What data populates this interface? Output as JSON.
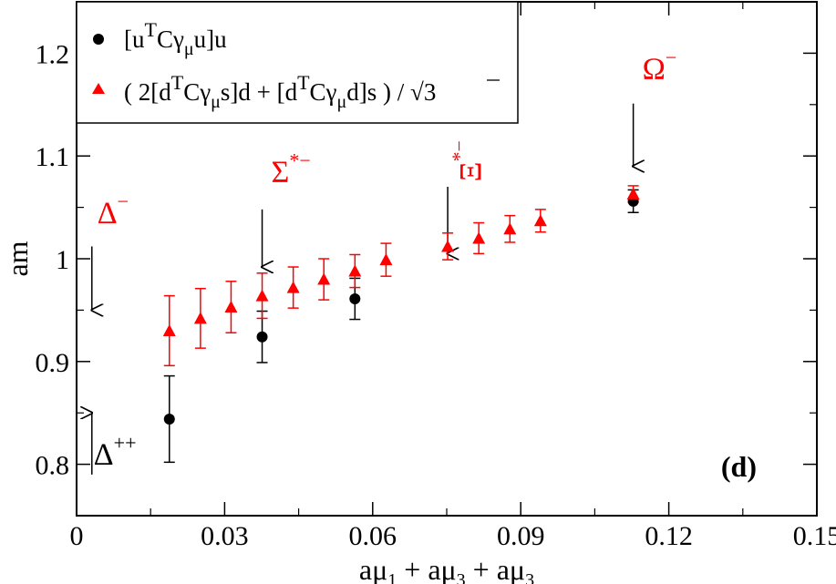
{
  "chart_data": {
    "type": "scatter",
    "panel_label": "(d)",
    "xlabel": {
      "a1": "aμ",
      "s1": "1",
      "a2": " + aμ",
      "s2": "3",
      "a3": " + aμ",
      "s3": "3"
    },
    "ylabel": "am",
    "xlim": [
      0,
      0.15
    ],
    "ylim": [
      0.75,
      1.25
    ],
    "x_ticks": [
      0,
      0.03,
      0.06,
      0.09,
      0.12,
      0.15
    ],
    "x_tick_labels": [
      "0",
      "0.03",
      "0.06",
      "0.09",
      "0.12",
      "0.15"
    ],
    "y_ticks": [
      0.8,
      0.9,
      1.0,
      1.1,
      1.2
    ],
    "y_tick_labels": [
      "0.8",
      "0.9",
      "1",
      "1.1",
      "1.2"
    ],
    "series": [
      {
        "name": "[u^T C γ_μ u] u",
        "color": "#000000",
        "marker": "circle",
        "points": [
          {
            "x": 0.0188,
            "y": 0.844,
            "err": 0.042
          },
          {
            "x": 0.0376,
            "y": 0.924,
            "err": 0.025
          },
          {
            "x": 0.0564,
            "y": 0.961,
            "err": 0.02
          },
          {
            "x": 0.1128,
            "y": 1.056,
            "err": 0.011
          }
        ]
      },
      {
        "name": "( 2[d^T C γ_μ s] d + [d^T C γ_μ d] s ) / √3",
        "color": "#ff0000",
        "marker": "triangle",
        "points": [
          {
            "x": 0.0188,
            "y": 0.93,
            "err": 0.034
          },
          {
            "x": 0.0251,
            "y": 0.942,
            "err": 0.029
          },
          {
            "x": 0.0313,
            "y": 0.953,
            "err": 0.025
          },
          {
            "x": 0.0376,
            "y": 0.964,
            "err": 0.022
          },
          {
            "x": 0.0439,
            "y": 0.972,
            "err": 0.02
          },
          {
            "x": 0.0501,
            "y": 0.98,
            "err": 0.02
          },
          {
            "x": 0.0564,
            "y": 0.988,
            "err": 0.016
          },
          {
            "x": 0.0627,
            "y": 0.999,
            "err": 0.016
          },
          {
            "x": 0.0752,
            "y": 1.012,
            "err": 0.013
          },
          {
            "x": 0.0815,
            "y": 1.02,
            "err": 0.015
          },
          {
            "x": 0.0878,
            "y": 1.029,
            "err": 0.013
          },
          {
            "x": 0.094,
            "y": 1.037,
            "err": 0.011
          },
          {
            "x": 0.1128,
            "y": 1.063,
            "err": 0.008
          }
        ]
      }
    ],
    "legend": {
      "position": "top-left",
      "entry1": {
        "p1": "[u",
        "sup": "T",
        "p2": "Cγ",
        "sub": "μ",
        "p3": "u]u"
      },
      "entry2": {
        "p1": "( 2[d",
        "sup1": "T",
        "p2": "Cγ",
        "sub1": "μ",
        "p3": "s]d + [d",
        "sup2": "T",
        "p4": "Cγ",
        "sub2": "μ",
        "p5": "d]s ) / ",
        "root": "√",
        "rootval": "3"
      }
    },
    "annotations": [
      {
        "id": "omega",
        "base": "Ω",
        "sup": "−",
        "color": "#ff0000",
        "arrow_x": 0.1128,
        "arrow_from": 1.151,
        "arrow_to": 1.09,
        "direction": "down"
      },
      {
        "id": "xi",
        "base": "Ξ",
        "sup": "*−",
        "color": "#ff0000",
        "arrow_x": 0.0752,
        "arrow_from": 1.07,
        "arrow_to": 1.005,
        "direction": "down"
      },
      {
        "id": "sigma",
        "base": "Σ",
        "sup": "*−",
        "color": "#ff0000",
        "arrow_x": 0.0376,
        "arrow_from": 1.048,
        "arrow_to": 0.992,
        "direction": "down"
      },
      {
        "id": "delta-minus",
        "base": "Δ",
        "sup": "−",
        "color": "#ff0000",
        "arrow_x": 0.0031,
        "arrow_from": 1.012,
        "arrow_to": 0.95,
        "direction": "down"
      },
      {
        "id": "delta-pp",
        "base": "Δ",
        "sup": "++",
        "color": "#000000",
        "arrow_x": 0.0031,
        "arrow_from": 0.79,
        "arrow_to": 0.85,
        "direction": "up"
      }
    ]
  }
}
